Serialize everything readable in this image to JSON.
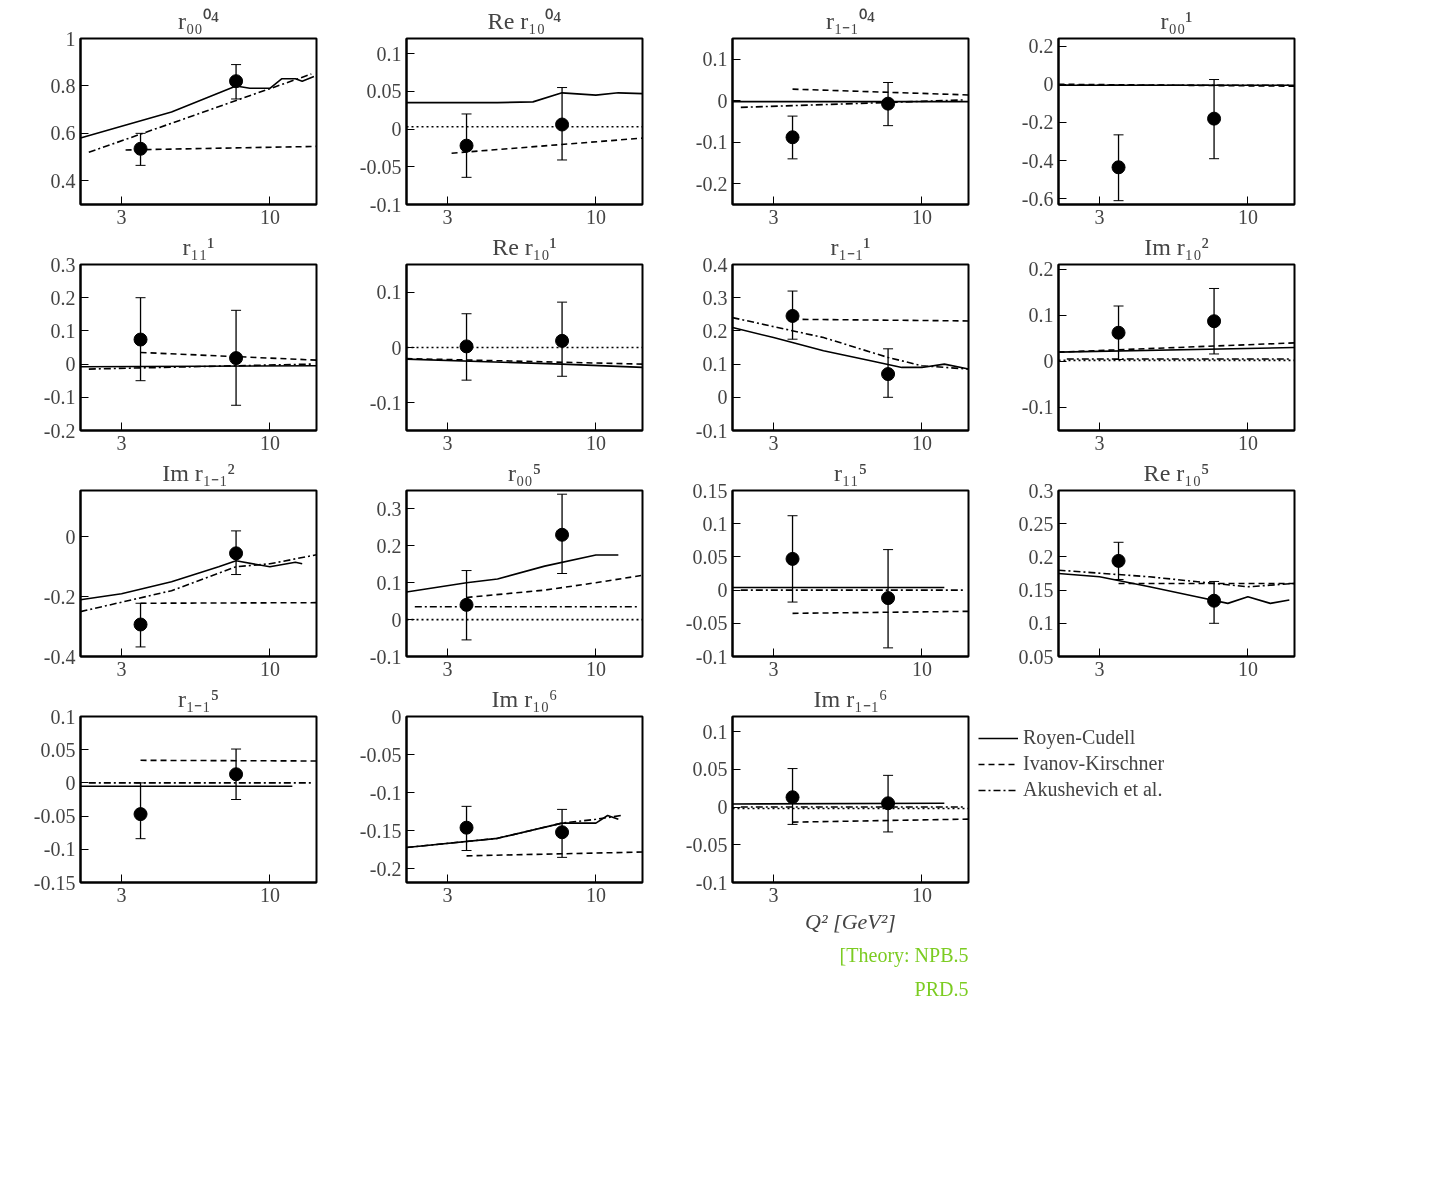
{
  "chart_data": [
    {
      "type": "scatter",
      "title": "r₀₀⁰⁴",
      "xlim": [
        2.15,
        14.6
      ],
      "xticks": [
        3,
        10
      ],
      "ylim": [
        0.3,
        1
      ],
      "yticks": [
        0.4,
        0.6,
        0.8,
        1
      ],
      "log": "x",
      "series": [
        {
          "type": "line",
          "line_style": "solid",
          "color": "#000000",
          "x": [
            2.15,
            3,
            4.5,
            6.6,
            7.6,
            8.5,
            10,
            11,
            12.3,
            13,
            14.3
          ],
          "values": [
            0.58,
            0.63,
            0.69,
            0.77,
            0.8,
            0.79,
            0.79,
            0.83,
            0.83,
            0.82,
            0.84
          ]
        },
        {
          "type": "line",
          "line_style": "dashed",
          "color": "#000000",
          "x": [
            3.1,
            14.6
          ],
          "values": [
            0.53,
            0.545
          ]
        },
        {
          "type": "line",
          "line_style": "dashdot",
          "color": "#000000",
          "x": [
            2.3,
            14
          ],
          "values": [
            0.52,
            0.85
          ]
        },
        {
          "marker": "circle",
          "color": "#000000",
          "x": [
            3.5,
            7.6
          ],
          "values": [
            0.535,
            0.82
          ],
          "errors": [
            [
              0.465,
              0.6
            ],
            [
              0.745,
              0.89
            ]
          ]
        }
      ]
    },
    {
      "type": "scatter",
      "title": "Re r₁₀⁰⁴",
      "xlim": [
        2.15,
        14.6
      ],
      "xticks": [
        3,
        10
      ],
      "ylim": [
        -0.1,
        0.12
      ],
      "yticks": [
        -0.1,
        -0.05,
        0,
        0.05,
        0.1
      ],
      "log": "x",
      "series": [
        {
          "type": "line",
          "line_style": "solid",
          "color": "#000000",
          "x": [
            2.15,
            4.5,
            6,
            7.6,
            10,
            12,
            14.6
          ],
          "values": [
            0.035,
            0.035,
            0.036,
            0.048,
            0.045,
            0.048,
            0.047
          ]
        },
        {
          "type": "line",
          "line_style": "dashed",
          "color": "#000000",
          "x": [
            3.1,
            14.6
          ],
          "values": [
            -0.032,
            -0.012
          ]
        },
        {
          "type": "line",
          "line_style": "dotted",
          "color": "#000000",
          "x": [
            2.15,
            14.6
          ],
          "values": [
            0.003,
            0.003
          ]
        },
        {
          "marker": "circle",
          "color": "#000000",
          "x": [
            3.5,
            7.6
          ],
          "values": [
            -0.022,
            0.006
          ],
          "errors": [
            [
              -0.064,
              0.02
            ],
            [
              -0.041,
              0.055
            ]
          ]
        }
      ]
    },
    {
      "type": "scatter",
      "title": "r₁₋₁⁰⁴",
      "xlim": [
        2.15,
        14.6
      ],
      "xticks": [
        3,
        10
      ],
      "ylim": [
        -0.25,
        0.15
      ],
      "yticks": [
        -0.2,
        -0.1,
        0,
        0.1
      ],
      "log": "x",
      "series": [
        {
          "type": "line",
          "line_style": "solid",
          "color": "#000000",
          "x": [
            2.15,
            14.6
          ],
          "values": [
            -0.002,
            -0.002
          ]
        },
        {
          "type": "line",
          "line_style": "dashed",
          "color": "#000000",
          "x": [
            3.5,
            14.6
          ],
          "values": [
            0.028,
            0.014
          ]
        },
        {
          "type": "line",
          "line_style": "dashdot",
          "color": "#000000",
          "x": [
            2.3,
            14
          ],
          "values": [
            -0.016,
            0.002
          ]
        },
        {
          "marker": "circle",
          "color": "#000000",
          "x": [
            3.5,
            7.6
          ],
          "values": [
            -0.088,
            -0.007
          ],
          "errors": [
            [
              -0.14,
              -0.037
            ],
            [
              -0.06,
              0.044
            ]
          ]
        }
      ]
    },
    {
      "type": "scatter",
      "title": "r₀₀¹",
      "xlim": [
        2.15,
        14.6
      ],
      "xticks": [
        3,
        10
      ],
      "ylim": [
        -0.63,
        0.24
      ],
      "yticks": [
        -0.6,
        -0.4,
        -0.2,
        0,
        0.2
      ],
      "log": "x",
      "series": [
        {
          "type": "line",
          "line_style": "solid",
          "color": "#000000",
          "x": [
            2.15,
            14.6
          ],
          "values": [
            -0.005,
            -0.005
          ]
        },
        {
          "type": "line",
          "line_style": "dashed",
          "color": "#000000",
          "x": [
            2.15,
            14.6
          ],
          "values": [
            0,
            -0.01
          ]
        },
        {
          "type": "line",
          "line_style": "dashdot",
          "color": "#000000",
          "x": [
            2.3,
            14
          ],
          "values": [
            -0.005,
            -0.005
          ]
        },
        {
          "marker": "circle",
          "color": "#000000",
          "x": [
            3.5,
            7.6
          ],
          "values": [
            -0.435,
            -0.18
          ],
          "errors": [
            [
              -0.61,
              -0.265
            ],
            [
              -0.39,
              0.025
            ]
          ]
        }
      ]
    },
    {
      "type": "scatter",
      "title": "r₁₁¹",
      "xlim": [
        2.15,
        14.6
      ],
      "xticks": [
        3,
        10
      ],
      "ylim": [
        -0.2,
        0.3
      ],
      "yticks": [
        -0.2,
        -0.1,
        0,
        0.1,
        0.2,
        0.3
      ],
      "log": "x",
      "series": [
        {
          "type": "line",
          "line_style": "solid",
          "color": "#000000",
          "x": [
            2.15,
            14.6
          ],
          "values": [
            -0.008,
            -0.005
          ]
        },
        {
          "type": "line",
          "line_style": "dashed",
          "color": "#000000",
          "x": [
            3.5,
            14.6
          ],
          "values": [
            0.035,
            0.012
          ]
        },
        {
          "type": "line",
          "line_style": "dashdot",
          "color": "#000000",
          "x": [
            2.3,
            14
          ],
          "values": [
            -0.015,
            0
          ]
        },
        {
          "marker": "circle",
          "color": "#000000",
          "x": [
            3.5,
            7.6
          ],
          "values": [
            0.074,
            0.018
          ],
          "errors": [
            [
              -0.05,
              0.2
            ],
            [
              -0.124,
              0.162
            ]
          ]
        }
      ]
    },
    {
      "type": "scatter",
      "title": "Re r₁₀¹",
      "xlim": [
        2.15,
        14.6
      ],
      "xticks": [
        3,
        10
      ],
      "ylim": [
        -0.15,
        0.15
      ],
      "yticks": [
        -0.1,
        0,
        0.1
      ],
      "log": "x",
      "series": [
        {
          "type": "line",
          "line_style": "solid",
          "color": "#000000",
          "x": [
            2.15,
            7.6,
            14.6
          ],
          "values": [
            -0.021,
            -0.03,
            -0.036
          ]
        },
        {
          "type": "line",
          "line_style": "dashed",
          "color": "#000000",
          "x": [
            2.15,
            14.6
          ],
          "values": [
            -0.02,
            -0.03
          ]
        },
        {
          "type": "line",
          "line_style": "dotted",
          "color": "#000000",
          "x": [
            2.15,
            14.6
          ],
          "values": [
            0,
            0
          ]
        },
        {
          "marker": "circle",
          "color": "#000000",
          "x": [
            3.5,
            7.6
          ],
          "values": [
            0.002,
            0.012
          ],
          "errors": [
            [
              -0.059,
              0.061
            ],
            [
              -0.052,
              0.082
            ]
          ]
        }
      ]
    },
    {
      "type": "scatter",
      "title": "r₁₋₁¹",
      "xlim": [
        2.15,
        14.6
      ],
      "xticks": [
        3,
        10
      ],
      "ylim": [
        -0.1,
        0.4
      ],
      "yticks": [
        -0.1,
        0,
        0.1,
        0.2,
        0.3,
        0.4
      ],
      "log": "x",
      "series": [
        {
          "type": "line",
          "line_style": "solid",
          "color": "#000000",
          "x": [
            2.15,
            3,
            4.5,
            6.6,
            8.5,
            10,
            12,
            14.6
          ],
          "values": [
            0.21,
            0.18,
            0.14,
            0.11,
            0.09,
            0.09,
            0.1,
            0.085
          ]
        },
        {
          "type": "line",
          "line_style": "dashed",
          "color": "#000000",
          "x": [
            3.5,
            14.6
          ],
          "values": [
            0.235,
            0.23
          ]
        },
        {
          "type": "line",
          "line_style": "dashdot",
          "color": "#000000",
          "x": [
            2.15,
            4.5,
            7.6,
            10,
            14.6
          ],
          "values": [
            0.24,
            0.18,
            0.12,
            0.095,
            0.085
          ]
        },
        {
          "marker": "circle",
          "color": "#000000",
          "x": [
            3.5,
            7.6
          ],
          "values": [
            0.245,
            0.07
          ],
          "errors": [
            [
              0.175,
              0.32
            ],
            [
              0,
              0.146
            ]
          ]
        }
      ]
    },
    {
      "type": "scatter",
      "title": "Im r₁₀²",
      "xlim": [
        2.15,
        14.6
      ],
      "xticks": [
        3,
        10
      ],
      "ylim": [
        -0.15,
        0.21
      ],
      "yticks": [
        -0.1,
        0,
        0.1,
        0.2
      ],
      "log": "x",
      "series": [
        {
          "type": "line",
          "line_style": "solid",
          "color": "#000000",
          "x": [
            2.15,
            14.6
          ],
          "values": [
            0.02,
            0.03
          ]
        },
        {
          "type": "line",
          "line_style": "dashed",
          "color": "#000000",
          "x": [
            2.15,
            14.6
          ],
          "values": [
            0.02,
            0.04
          ]
        },
        {
          "type": "line",
          "line_style": "dashdot",
          "color": "#000000",
          "x": [
            2.3,
            14
          ],
          "values": [
            0.005,
            0.005
          ]
        },
        {
          "type": "line",
          "line_style": "dotted",
          "color": "#000000",
          "x": [
            2.15,
            14.6
          ],
          "values": [
            0.002,
            0.002
          ]
        },
        {
          "marker": "circle",
          "color": "#000000",
          "x": [
            3.5,
            7.6
          ],
          "values": [
            0.062,
            0.087
          ],
          "errors": [
            [
              0.004,
              0.12
            ],
            [
              0.016,
              0.158
            ]
          ]
        }
      ]
    },
    {
      "type": "scatter",
      "title": "Im r₁₋₁²",
      "xlim": [
        2.15,
        14.6
      ],
      "xticks": [
        3,
        10
      ],
      "ylim": [
        -0.4,
        0.155
      ],
      "yticks": [
        -0.4,
        -0.2,
        0
      ],
      "log": "x",
      "series": [
        {
          "type": "line",
          "line_style": "solid",
          "color": "#000000",
          "x": [
            2.15,
            3,
            4.5,
            6.6,
            7.6,
            10,
            12.3,
            13
          ],
          "values": [
            -0.21,
            -0.19,
            -0.15,
            -0.1,
            -0.08,
            -0.1,
            -0.085,
            -0.09
          ]
        },
        {
          "type": "line",
          "line_style": "dashed",
          "color": "#000000",
          "x": [
            3.5,
            14.6
          ],
          "values": [
            -0.222,
            -0.22
          ]
        },
        {
          "type": "line",
          "line_style": "dashdot",
          "color": "#000000",
          "x": [
            2.15,
            4.5,
            7.6,
            10,
            14.6
          ],
          "values": [
            -0.25,
            -0.18,
            -0.1,
            -0.09,
            -0.06
          ]
        },
        {
          "marker": "circle",
          "color": "#000000",
          "x": [
            3.5,
            7.6
          ],
          "values": [
            -0.293,
            -0.055
          ],
          "errors": [
            [
              -0.368,
              -0.222
            ],
            [
              -0.126,
              0.02
            ]
          ]
        }
      ]
    },
    {
      "type": "scatter",
      "title": "r₀₀⁵",
      "xlim": [
        2.15,
        14.6
      ],
      "xticks": [
        3,
        10
      ],
      "ylim": [
        -0.1,
        0.35
      ],
      "yticks": [
        -0.1,
        0,
        0.1,
        0.2,
        0.3
      ],
      "log": "x",
      "series": [
        {
          "type": "line",
          "line_style": "solid",
          "color": "#000000",
          "x": [
            2.15,
            3.5,
            4.5,
            6.6,
            10,
            12
          ],
          "values": [
            0.075,
            0.1,
            0.11,
            0.145,
            0.175,
            0.175
          ]
        },
        {
          "type": "line",
          "line_style": "dashed",
          "color": "#000000",
          "x": [
            3.5,
            6.6,
            10,
            14.6
          ],
          "values": [
            0.06,
            0.08,
            0.1,
            0.12
          ]
        },
        {
          "type": "line",
          "line_style": "dashdot",
          "color": "#000000",
          "x": [
            2.3,
            14
          ],
          "values": [
            0.035,
            0.035
          ]
        },
        {
          "type": "line",
          "line_style": "dotted",
          "color": "#000000",
          "x": [
            2.15,
            14.6
          ],
          "values": [
            0,
            0
          ]
        },
        {
          "marker": "circle",
          "color": "#000000",
          "x": [
            3.5,
            7.6
          ],
          "values": [
            0.04,
            0.23
          ],
          "errors": [
            [
              -0.055,
              0.133
            ],
            [
              0.125,
              0.34
            ]
          ]
        }
      ]
    },
    {
      "type": "scatter",
      "title": "r₁₁⁵",
      "xlim": [
        2.15,
        14.6
      ],
      "xticks": [
        3,
        10
      ],
      "ylim": [
        -0.1,
        0.15
      ],
      "yticks": [
        -0.1,
        -0.05,
        0,
        0.05,
        0.1,
        0.15
      ],
      "log": "x",
      "series": [
        {
          "type": "line",
          "line_style": "solid",
          "color": "#000000",
          "x": [
            2.15,
            12
          ],
          "values": [
            0.004,
            0.004
          ]
        },
        {
          "type": "line",
          "line_style": "dashed",
          "color": "#000000",
          "x": [
            3.5,
            14.6
          ],
          "values": [
            -0.035,
            -0.032
          ]
        },
        {
          "type": "line",
          "line_style": "dashdot",
          "color": "#000000",
          "x": [
            2.3,
            14
          ],
          "values": [
            0,
            0
          ]
        },
        {
          "marker": "circle",
          "color": "#000000",
          "x": [
            3.5,
            7.6
          ],
          "values": [
            0.047,
            -0.012
          ],
          "errors": [
            [
              -0.018,
              0.112
            ],
            [
              -0.087,
              0.061
            ]
          ]
        }
      ]
    },
    {
      "type": "scatter",
      "title": "Re r₁₀⁵",
      "xlim": [
        2.15,
        14.6
      ],
      "xticks": [
        3,
        10
      ],
      "ylim": [
        0.05,
        0.3
      ],
      "yticks": [
        0.05,
        0.1,
        0.15,
        0.2,
        0.25,
        0.3
      ],
      "log": "x",
      "series": [
        {
          "type": "line",
          "line_style": "solid",
          "color": "#000000",
          "x": [
            2.15,
            3,
            4.5,
            6.6,
            8.5,
            10,
            12,
            14
          ],
          "values": [
            0.175,
            0.17,
            0.155,
            0.14,
            0.13,
            0.14,
            0.13,
            0.135
          ]
        },
        {
          "type": "line",
          "line_style": "dashed",
          "color": "#000000",
          "x": [
            3.5,
            14.6
          ],
          "values": [
            0.16,
            0.16
          ]
        },
        {
          "type": "line",
          "line_style": "dashdot",
          "color": "#000000",
          "x": [
            2.15,
            4.5,
            10,
            14.6
          ],
          "values": [
            0.18,
            0.17,
            0.155,
            0.16
          ]
        },
        {
          "marker": "circle",
          "color": "#000000",
          "x": [
            3.5,
            7.6
          ],
          "values": [
            0.194,
            0.134
          ],
          "errors": [
            [
              0.166,
              0.222
            ],
            [
              0.1,
              0.163
            ]
          ]
        }
      ]
    },
    {
      "type": "scatter",
      "title": "r₁₋₁⁵",
      "xlim": [
        2.15,
        14.6
      ],
      "xticks": [
        3,
        10
      ],
      "ylim": [
        -0.15,
        0.1
      ],
      "yticks": [
        -0.15,
        -0.1,
        -0.05,
        0,
        0.05,
        0.1
      ],
      "log": "x",
      "series": [
        {
          "type": "line",
          "line_style": "solid",
          "color": "#000000",
          "x": [
            2.15,
            12
          ],
          "values": [
            -0.005,
            -0.005
          ]
        },
        {
          "type": "line",
          "line_style": "dashed",
          "color": "#000000",
          "x": [
            3.5,
            14.6
          ],
          "values": [
            0.034,
            0.033
          ]
        },
        {
          "type": "line",
          "line_style": "dashdot",
          "color": "#000000",
          "x": [
            2.3,
            14
          ],
          "values": [
            0,
            0
          ]
        },
        {
          "marker": "circle",
          "color": "#000000",
          "x": [
            3.5,
            7.6
          ],
          "values": [
            -0.047,
            0.013
          ],
          "errors": [
            [
              -0.084,
              0
            ],
            [
              -0.025,
              0.051
            ]
          ]
        }
      ]
    },
    {
      "type": "scatter",
      "title": "Im r₁₀⁶",
      "xlim": [
        2.15,
        14.6
      ],
      "xticks": [
        3,
        10
      ],
      "ylim": [
        -0.218,
        0
      ],
      "yticks": [
        -0.2,
        -0.15,
        -0.1,
        -0.05,
        0
      ],
      "log": "x",
      "series": [
        {
          "type": "line",
          "line_style": "solid",
          "color": "#000000",
          "x": [
            2.15,
            4.5,
            7.6,
            10,
            11,
            12
          ],
          "values": [
            -0.172,
            -0.16,
            -0.14,
            -0.14,
            -0.13,
            -0.135
          ]
        },
        {
          "type": "line",
          "line_style": "dashed",
          "color": "#000000",
          "x": [
            3.5,
            14.6
          ],
          "values": [
            -0.183,
            -0.178
          ]
        },
        {
          "type": "line",
          "line_style": "dashdot",
          "color": "#000000",
          "x": [
            2.15,
            4.5,
            7.6,
            10,
            12.3
          ],
          "values": [
            -0.172,
            -0.16,
            -0.14,
            -0.135,
            -0.13
          ]
        },
        {
          "marker": "circle",
          "color": "#000000",
          "x": [
            3.5,
            7.6
          ],
          "values": [
            -0.146,
            -0.152
          ],
          "errors": [
            [
              -0.176,
              -0.118
            ],
            [
              -0.185,
              -0.122
            ]
          ]
        }
      ]
    },
    {
      "type": "scatter",
      "title": "Im r₁₋₁⁶",
      "xlabel": "Q² [GeV²]",
      "xlim": [
        2.15,
        14.6
      ],
      "xticks": [
        3,
        10
      ],
      "ylim": [
        -0.1,
        0.12
      ],
      "yticks": [
        -0.1,
        -0.05,
        0,
        0.05,
        0.1
      ],
      "log": "x",
      "legend": "right",
      "annotations": [
        "[Theory: NPB.5",
        "PRD.5"
      ],
      "series": [
        {
          "type": "line",
          "name": "Royen-Cudell",
          "line_style": "solid",
          "color": "#000000",
          "x": [
            2.15,
            12
          ],
          "values": [
            0.004,
            0.005
          ]
        },
        {
          "type": "line",
          "name": "Ivanov-Kirschner",
          "line_style": "dashed",
          "color": "#000000",
          "x": [
            3.5,
            14.6
          ],
          "values": [
            -0.02,
            -0.016
          ]
        },
        {
          "type": "line",
          "name": "Akushevich et al.",
          "line_style": "dashdot",
          "color": "#000000",
          "x": [
            2.3,
            14
          ],
          "values": [
            0,
            0
          ]
        },
        {
          "type": "line",
          "line_style": "dotted",
          "color": "#000000",
          "x": [
            2.15,
            14.6
          ],
          "values": [
            -0.002,
            -0.002
          ]
        },
        {
          "marker": "circle",
          "color": "#000000",
          "x": [
            3.5,
            7.6
          ],
          "values": [
            0.013,
            0.005
          ],
          "errors": [
            [
              -0.023,
              0.051
            ],
            [
              -0.033,
              0.042
            ]
          ]
        }
      ]
    }
  ]
}
